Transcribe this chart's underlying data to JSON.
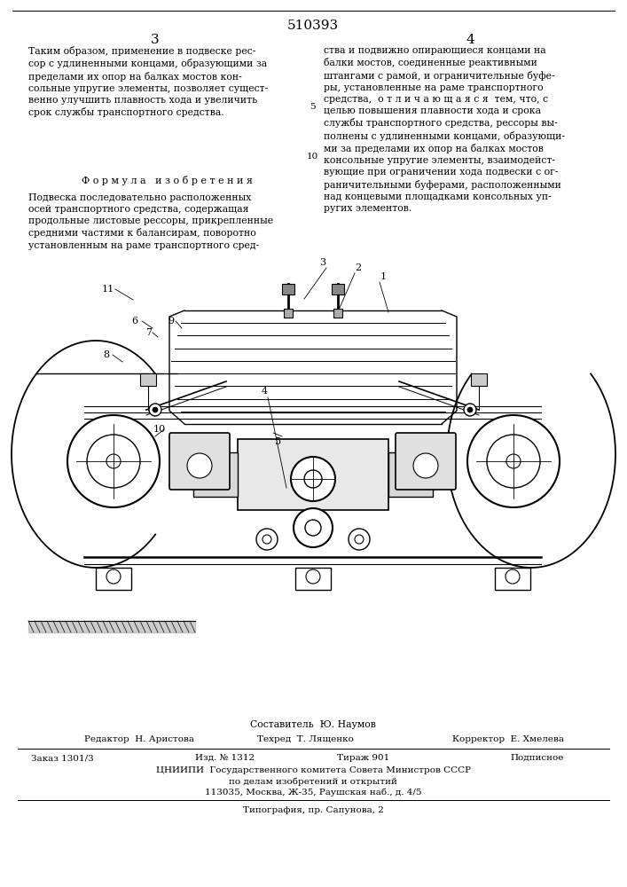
{
  "patent_number": "510393",
  "page_left": "3",
  "page_right": "4",
  "text_col1_top": "Таким образом, применение в подвеске рес-\nсор с удлиненными концами, образующими за\nпределами их опор на балках мостов кон-\nсольные упругие элементы, позволяет сущест-\nвенно улучшить плавность хода и увеличить\nсрок службы транспортного средства.",
  "formula_title": "Ф о р м у л а   и з о б р е т е н и я",
  "text_col1_formula": "Подвеска последовательно расположенных\nосей транспортного средства, содержащая\nпродольные листовые рессоры, прикрепленные\nсредними частями к балансирам, поворотно\nустановленным на раме транспортного сред-",
  "text_col2_top": "ства и подвижно опирающиеся концами на\nбалки мостов, соединенные реактивными\nштангами с рамой, и ограничительные буфе-\nры, установленные на раме транспортного\nсредства,  о т л и ч а ю щ а я с я  тем, что, с\nцелью повышения плавности хода и срока\nслужбы транспортного средства, рессоры вы-\nполнены с удлиненными концами, образующи-\nми за пределами их опор на балках мостов\nконсольные упругие элементы, взаимодейст-\nвующие при ограничении хода подвески с ог-\nраничительными буферами, расположенными\nнад концевыми площадками консольных уп-\nругих элементов.",
  "footer_sostavitel": "Составитель  Ю. Наумов",
  "footer_editor": "Редактор  Н. Аристова",
  "footer_tekhred": "Техред  Т. Лященко",
  "footer_korrektor": "Корректор  Е. Хмелева",
  "footer_zakaz": "Заказ 1301/3",
  "footer_izd": "Изд. № 1312",
  "footer_tirazh": "Тираж 901",
  "footer_podpisnoe": "Подписное",
  "footer_tsniip1": "ЦНИИПИ  Государственного комитета Совета Министров СССР",
  "footer_tsniip2": "по делам изобретений и открытий",
  "footer_tsniip3": "113035, Москва, Ж-35, Раушская наб., д. 4/5",
  "footer_tipografia": "Типография, пр. Сапунова, 2",
  "bg_color": "#ffffff",
  "text_color": "#000000",
  "line_color": "#000000"
}
